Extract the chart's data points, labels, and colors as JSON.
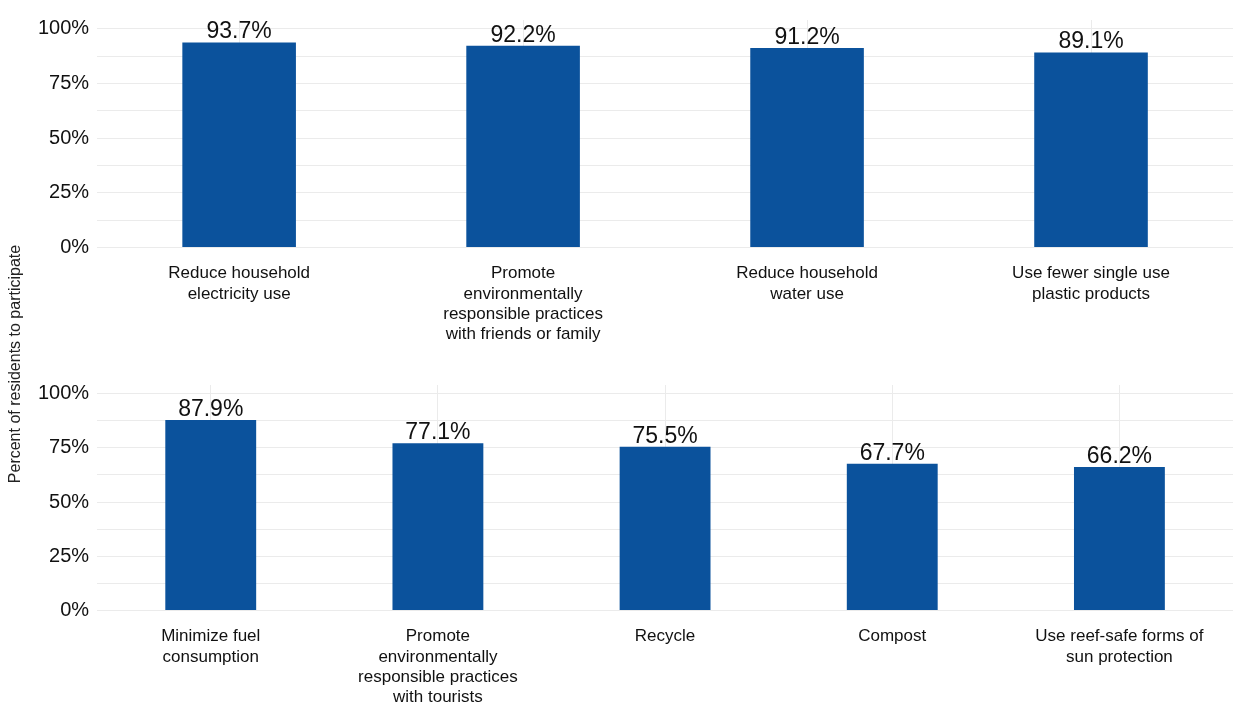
{
  "chart_data": [
    {
      "type": "bar",
      "ylabel": "Percent of residents to participate",
      "categories": [
        "Reduce household electricity use",
        "Promote environmentally responsible practices with friends or family",
        "Reduce household water use",
        "Use fewer single use plastic products"
      ],
      "values": [
        93.7,
        92.2,
        91.2,
        89.1
      ],
      "value_labels": [
        "93.7%",
        "92.2%",
        "91.2%",
        "89.1%"
      ],
      "color": "#0b529c",
      "ylim": [
        0,
        104
      ],
      "yticks": [
        {
          "value": 0,
          "label": "0%"
        },
        {
          "value": 12.5,
          "label": null
        },
        {
          "value": 25,
          "label": "25%"
        },
        {
          "value": 37.5,
          "label": null
        },
        {
          "value": 50,
          "label": "50%"
        },
        {
          "value": 62.5,
          "label": null
        },
        {
          "value": 75,
          "label": "75%"
        },
        {
          "value": 87.5,
          "label": null
        },
        {
          "value": 100,
          "label": "100%"
        }
      ],
      "grid": true
    },
    {
      "type": "bar",
      "categories": [
        "Minimize fuel consumption",
        "Promote environmentally responsible practices with tourists",
        "Recycle",
        "Compost",
        "Use reef-safe forms of sun protection"
      ],
      "values": [
        87.9,
        77.1,
        75.5,
        67.7,
        66.2
      ],
      "value_labels": [
        "87.9%",
        "77.1%",
        "75.5%",
        "67.7%",
        "66.2%"
      ],
      "color": "#0b529c",
      "ylim": [
        0,
        104
      ],
      "yticks": [
        {
          "value": 0,
          "label": "0%"
        },
        {
          "value": 12.5,
          "label": null
        },
        {
          "value": 25,
          "label": "25%"
        },
        {
          "value": 37.5,
          "label": null
        },
        {
          "value": 50,
          "label": "50%"
        },
        {
          "value": 62.5,
          "label": null
        },
        {
          "value": 75,
          "label": "75%"
        },
        {
          "value": 87.5,
          "label": null
        },
        {
          "value": 100,
          "label": "100%"
        }
      ],
      "grid": true
    }
  ]
}
